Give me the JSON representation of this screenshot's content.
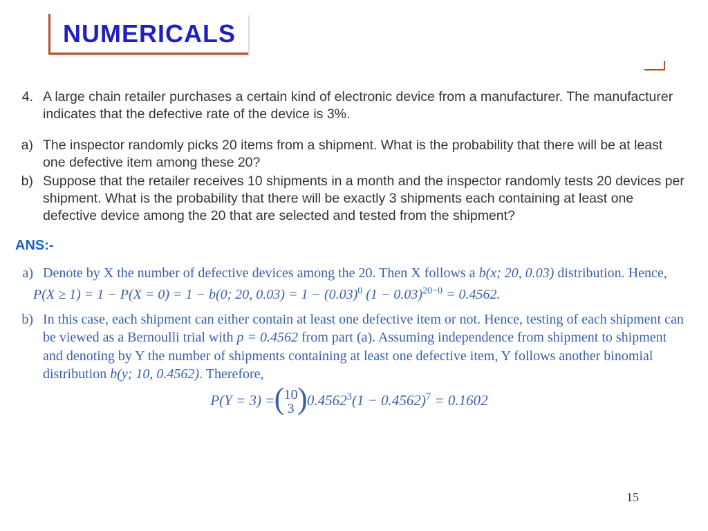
{
  "title": "NUMERICALS",
  "page_number": "15",
  "colors": {
    "title": "#2020c0",
    "title_border": "#b05030",
    "question_text": "#333333",
    "answer_text": "#3a5fa8",
    "ans_label": "#1a5fc9"
  },
  "question": {
    "number": "4.",
    "stem": "A large chain retailer purchases a certain kind of electronic device from a manufacturer. The manufacturer indicates that the defective rate of the device is 3%.",
    "parts": {
      "a": {
        "label": "a)",
        "text": "The inspector randomly picks 20 items from a shipment. What is the probability that there will be at least one defective item among these 20?"
      },
      "b": {
        "label": "b)",
        "text": "Suppose that the retailer receives 10 shipments in a month and the inspector randomly tests 20 devices per shipment. What is the probability that there will be exactly 3 shipments each containing at least one defective device among the 20 that are selected and tested from the shipment?"
      }
    }
  },
  "answer": {
    "label": "ANS:-",
    "a": {
      "label": "a)",
      "text_pre": "Denote by X the number of defective devices among the 20. Then X follows a ",
      "dist": "b(x; 20, 0.03)",
      "text_post": " distribution. Hence,",
      "eq_lhs": "P(X ≥ 1) = 1 − P(X = 0) = 1 − b(0; 20, 0.03) = 1 − (0.03)",
      "exp0": "0",
      "eq_mid": " (1 − 0.03)",
      "exp1": "20−0",
      "eq_rhs": " = 0.4562."
    },
    "b": {
      "label": "b)",
      "text_pre": "In this case, each shipment can either contain at least one defective item or not. Hence, testing of each shipment can be viewed as a Bernoulli trial with ",
      "p_eq": "p = 0.4562",
      "text_mid": " from part (a). Assuming independence from shipment to shipment and denoting by Y the number of shipments containing at least one defective item, Y follows another binomial distribution ",
      "dist": "b(y; 10, 0.4562)",
      "text_post": ". Therefore,",
      "final_lhs": "P(Y = 3) = ",
      "binom_top": "10",
      "binom_bot": "3",
      "final_mid": " 0.4562",
      "exp3": "3",
      "final_paren": "(1 − 0.4562)",
      "exp7": "7",
      "final_rhs": " = 0.1602"
    }
  }
}
